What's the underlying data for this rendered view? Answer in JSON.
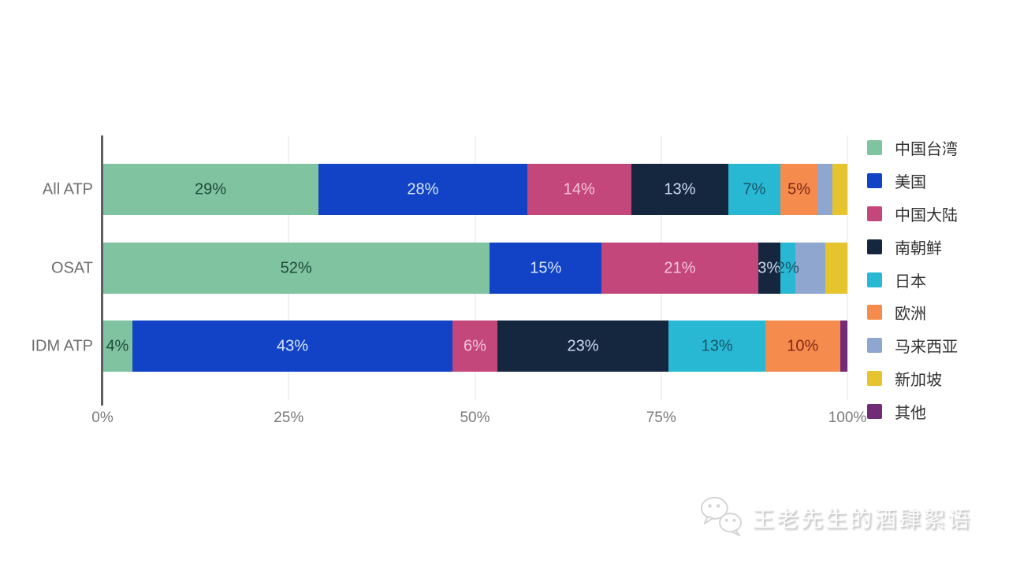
{
  "chart_data": {
    "type": "bar",
    "orientation": "horizontal",
    "stacked": true,
    "title": "",
    "xlabel": "",
    "ylabel": "",
    "xlim": [
      0,
      100
    ],
    "grid": true,
    "legend_position": "right",
    "categories": [
      "All ATP",
      "OSAT",
      "IDM ATP"
    ],
    "x_ticks": [
      {
        "value": 0,
        "label": "0%"
      },
      {
        "value": 25,
        "label": "25%"
      },
      {
        "value": 50,
        "label": "50%"
      },
      {
        "value": 75,
        "label": "75%"
      },
      {
        "value": 100,
        "label": "100%"
      }
    ],
    "series": [
      {
        "name": "中国台湾",
        "color": "#7FC3A0",
        "label_color": "#1F4A38",
        "values": [
          29,
          52,
          4
        ],
        "labels": [
          "29%",
          "52%",
          "4%"
        ]
      },
      {
        "name": "美国",
        "color": "#1243C6",
        "label_color": "#D9E6FA",
        "values": [
          28,
          15,
          43
        ],
        "labels": [
          "28%",
          "15%",
          "43%"
        ]
      },
      {
        "name": "中国大陆",
        "color": "#C4477C",
        "label_color": "#F4C3DB",
        "values": [
          14,
          21,
          6
        ],
        "labels": [
          "14%",
          "21%",
          "6%"
        ]
      },
      {
        "name": "南朝鲜",
        "color": "#15263F",
        "label_color": "#CCDCF2",
        "values": [
          13,
          3,
          23
        ],
        "labels": [
          "13%",
          "3%",
          "23%"
        ]
      },
      {
        "name": "日本",
        "color": "#28B8D4",
        "label_color": "#1A5668",
        "values": [
          7,
          2,
          13
        ],
        "labels": [
          "7%",
          "2%",
          "13%"
        ]
      },
      {
        "name": "欧洲",
        "color": "#F68B4E",
        "label_color": "#7E2A15",
        "values": [
          5,
          0,
          10
        ],
        "labels": [
          "5%",
          "",
          "10%"
        ]
      },
      {
        "name": "马来西亚",
        "color": "#8FA6CF",
        "label_color": "#2F3B55",
        "values": [
          2,
          4,
          0
        ],
        "labels": [
          "",
          "",
          ""
        ]
      },
      {
        "name": "新加坡",
        "color": "#E5C42E",
        "label_color": "#4A3C08",
        "values": [
          2,
          3,
          0
        ],
        "labels": [
          "",
          "",
          ""
        ]
      },
      {
        "name": "其他",
        "color": "#722C77",
        "label_color": "#E8D3EA",
        "values": [
          0,
          0,
          1
        ],
        "labels": [
          "",
          "",
          ""
        ]
      }
    ]
  },
  "watermark": {
    "text": "王老先生的酒肆絮语"
  }
}
